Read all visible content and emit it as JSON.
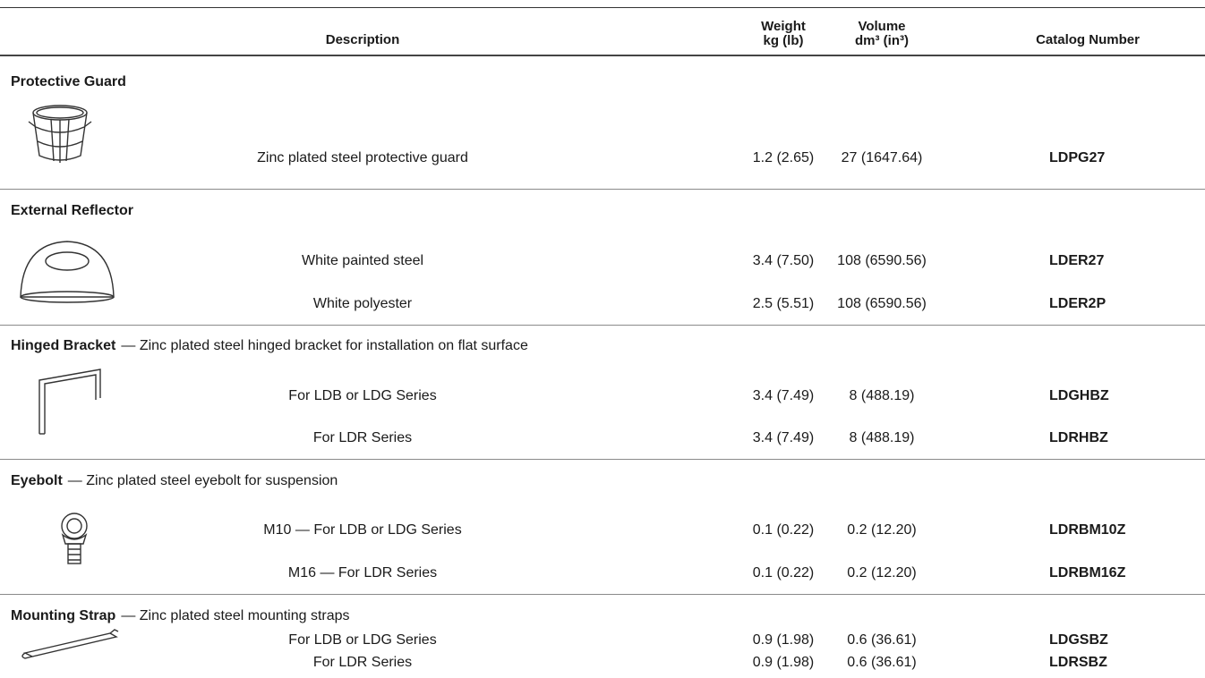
{
  "header": {
    "description": "Description",
    "weight": {
      "label": "Weight",
      "unit": "kg (lb)"
    },
    "volume": {
      "label": "Volume",
      "unit": "dm³ (in³)"
    },
    "catalog_number": "Catalog Number"
  },
  "groups": [
    {
      "title": "Protective Guard",
      "rows": [
        [
          "Zinc plated steel protective guard",
          "1.2 (2.65)",
          "27 (1647.64)",
          "LDPG27"
        ]
      ]
    },
    {
      "title": "External Reflector",
      "rows": [
        [
          "White painted steel",
          "3.4 (7.50)",
          "108 (6590.56)",
          "LDER27"
        ],
        [
          "White polyester",
          "2.5 (5.51)",
          "108 (6590.56)",
          "LDER2P"
        ]
      ]
    },
    {
      "title": "Hinged Bracket",
      "note": "— Zinc plated steel hinged bracket for installation on flat surface",
      "rows": [
        [
          "For LDB or LDG Series",
          "3.4 (7.49)",
          "8 (488.19)",
          "LDGHBZ"
        ],
        [
          "For LDR Series",
          "3.4 (7.49)",
          "8 (488.19)",
          "LDRHBZ"
        ]
      ]
    },
    {
      "title": "Eyebolt",
      "note": "— Zinc plated steel eyebolt for suspension",
      "rows": [
        [
          "M10 — For LDB or LDG Series",
          "0.1 (0.22)",
          "0.2 (12.20)",
          "LDRBM10Z"
        ],
        [
          "M16 — For LDR Series",
          "0.1 (0.22)",
          "0.2 (12.20)",
          "LDRBM16Z"
        ]
      ]
    },
    {
      "title": "Mounting Strap",
      "note": "— Zinc plated steel mounting straps",
      "rows": [
        [
          "For LDB or LDG Series",
          "0.9 (1.98)",
          "0.6 (36.61)",
          "LDGSBZ"
        ],
        [
          "For LDR Series",
          "0.9 (1.98)",
          "0.6 (36.61)",
          "LDRSBZ"
        ]
      ]
    }
  ]
}
